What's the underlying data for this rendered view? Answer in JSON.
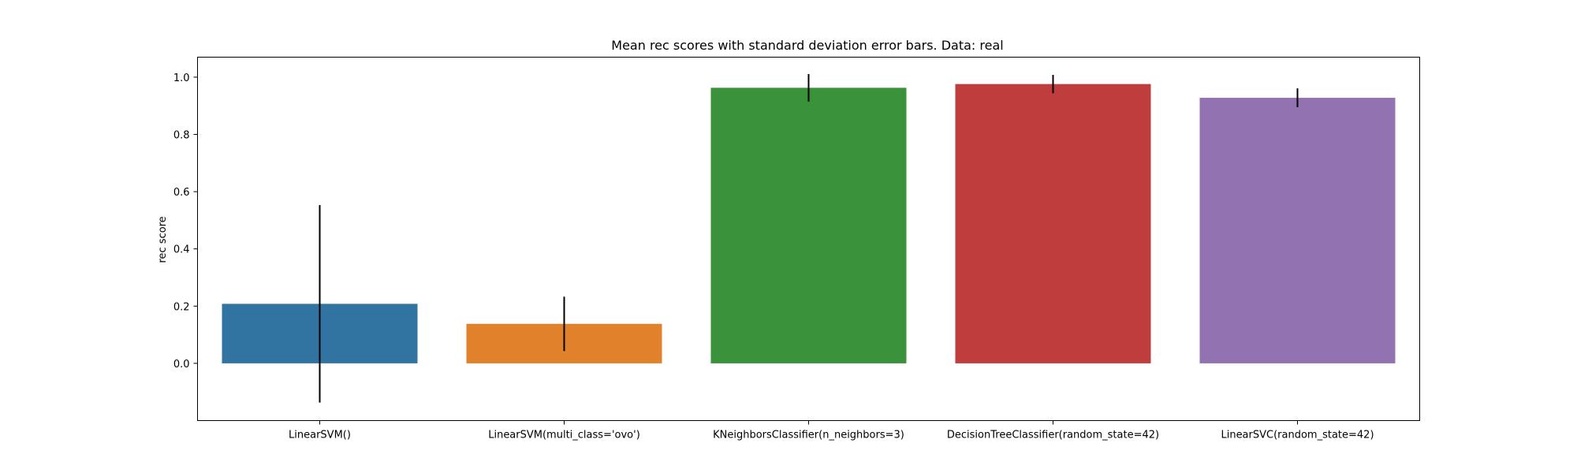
{
  "chart_data": {
    "type": "bar",
    "title": "Mean rec scores with standard deviation error bars. Data: real",
    "xlabel": "",
    "ylabel": "rec score",
    "ylim": [
      -0.2,
      1.07
    ],
    "yticks": [
      0.0,
      0.2,
      0.4,
      0.6,
      0.8,
      1.0
    ],
    "ytick_labels": [
      "0.0",
      "0.2",
      "0.4",
      "0.6",
      "0.8",
      "1.0"
    ],
    "grid": false,
    "categories": [
      "LinearSVM()",
      "LinearSVM(multi_class='ovo')",
      "KNeighborsClassifier(n_neighbors=3)",
      "DecisionTreeClassifier(random_state=42)",
      "LinearSVC(random_state=42)"
    ],
    "values": [
      0.208,
      0.138,
      0.963,
      0.976,
      0.928
    ],
    "errors": [
      0.345,
      0.095,
      0.048,
      0.032,
      0.033
    ],
    "colors": [
      "#3274a1",
      "#e1812c",
      "#3a923a",
      "#c03d3e",
      "#9372b2"
    ]
  }
}
